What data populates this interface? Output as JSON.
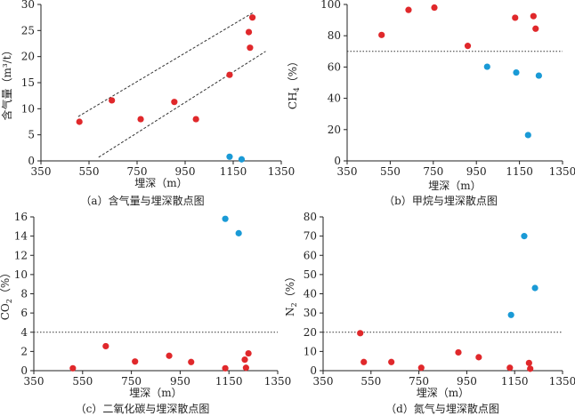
{
  "chart_data": [
    {
      "id": "a",
      "type": "scatter",
      "caption": "（a）含气量与埋深散点图",
      "xlabel": "埋深（m）",
      "ylabel": "含气量（m³/t）",
      "xlim": [
        350,
        1350
      ],
      "ylim": [
        0,
        30
      ],
      "xticks": [
        "350",
        "550",
        "750",
        "950",
        "1150",
        "1350"
      ],
      "yticks": [
        "0",
        "5",
        "10",
        "15",
        "20",
        "25",
        "30"
      ],
      "guides": [
        {
          "kind": "dashed",
          "x": [
            505,
            1235
          ],
          "y": [
            8.5,
            28.5
          ]
        },
        {
          "kind": "dashed",
          "x": [
            590,
            1285
          ],
          "y": [
            0.7,
            21
          ]
        }
      ],
      "series": [
        {
          "name": "red",
          "color": "#e0282b",
          "points": [
            [
              510,
              7.5
            ],
            [
              645,
              11.6
            ],
            [
              765,
              8
            ],
            [
              905,
              11.3
            ],
            [
              995,
              8
            ],
            [
              1135,
              16.5
            ],
            [
              1215,
              24.7
            ],
            [
              1220,
              21.7
            ],
            [
              1230,
              27.5
            ]
          ]
        },
        {
          "name": "blue",
          "color": "#1a9ad6",
          "points": [
            [
              1135,
              0.8
            ],
            [
              1185,
              0.3
            ]
          ]
        }
      ]
    },
    {
      "id": "b",
      "type": "scatter",
      "caption": "（b）甲烷与埋深散点图",
      "xlabel": "埋深（m）",
      "ylabel": "CH4（%）",
      "xlim": [
        350,
        1350
      ],
      "ylim": [
        0,
        100
      ],
      "xticks": [
        "350",
        "550",
        "750",
        "950",
        "1150",
        "1350"
      ],
      "yticks": [
        "0",
        "20",
        "40",
        "60",
        "80",
        "100"
      ],
      "guides": [
        {
          "kind": "dotted",
          "x": [
            350,
            1350
          ],
          "y": [
            70,
            70
          ]
        }
      ],
      "series": [
        {
          "name": "red",
          "color": "#e0282b",
          "points": [
            [
              510,
              80.5
            ],
            [
              635,
              96.5
            ],
            [
              755,
              98
            ],
            [
              910,
              73.5
            ],
            [
              1130,
              91.5
            ],
            [
              1215,
              92.5
            ],
            [
              1225,
              84.5
            ]
          ]
        },
        {
          "name": "blue",
          "color": "#1a9ad6",
          "points": [
            [
              1000,
              60.2
            ],
            [
              1135,
              56.5
            ],
            [
              1190,
              16.5
            ],
            [
              1240,
              54.5
            ]
          ]
        }
      ]
    },
    {
      "id": "c",
      "type": "scatter",
      "caption": "（c）二氧化碳与埋深散点图",
      "xlabel": "埋深（m）",
      "ylabel": "CO2（%）",
      "xlim": [
        350,
        1350
      ],
      "ylim": [
        0,
        16
      ],
      "xticks": [
        "350",
        "550",
        "750",
        "950",
        "1150",
        "1350"
      ],
      "yticks": [
        "0",
        "2",
        "4",
        "6",
        "8",
        "10",
        "12",
        "14",
        "16"
      ],
      "guides": [
        {
          "kind": "dotted",
          "x": [
            350,
            1350
          ],
          "y": [
            4,
            4
          ]
        }
      ],
      "series": [
        {
          "name": "red",
          "color": "#e0282b",
          "points": [
            [
              510,
              0.25
            ],
            [
              645,
              2.55
            ],
            [
              765,
              0.95
            ],
            [
              905,
              1.55
            ],
            [
              995,
              0.9
            ],
            [
              1135,
              0.25
            ],
            [
              1215,
              1.15
            ],
            [
              1220,
              0.3
            ],
            [
              1230,
              1.8
            ]
          ]
        },
        {
          "name": "blue",
          "color": "#1a9ad6",
          "points": [
            [
              1135,
              15.8
            ],
            [
              1190,
              14.3
            ]
          ]
        }
      ]
    },
    {
      "id": "d",
      "type": "scatter",
      "caption": "（d）氮气与埋深散点图",
      "xlabel": "埋深（m）",
      "ylabel": "N2（%）",
      "xlim": [
        350,
        1350
      ],
      "ylim": [
        0,
        80
      ],
      "xticks": [
        "350",
        "550",
        "750",
        "950",
        "1150",
        "1350"
      ],
      "yticks": [
        "0",
        "10",
        "20",
        "30",
        "40",
        "50",
        "60",
        "70",
        "80"
      ],
      "guides": [
        {
          "kind": "dotted",
          "x": [
            350,
            1350
          ],
          "y": [
            20,
            20
          ]
        }
      ],
      "series": [
        {
          "name": "red",
          "color": "#e0282b",
          "points": [
            [
              505,
              19.5
            ],
            [
              520,
              4.5
            ],
            [
              635,
              4.5
            ],
            [
              760,
              1.5
            ],
            [
              915,
              9.5
            ],
            [
              1000,
              7
            ],
            [
              1130,
              1.5
            ],
            [
              1210,
              4
            ],
            [
              1215,
              1
            ]
          ]
        },
        {
          "name": "blue",
          "color": "#1a9ad6",
          "points": [
            [
              1135,
              29
            ],
            [
              1190,
              70
            ],
            [
              1235,
              43
            ]
          ]
        }
      ]
    }
  ]
}
